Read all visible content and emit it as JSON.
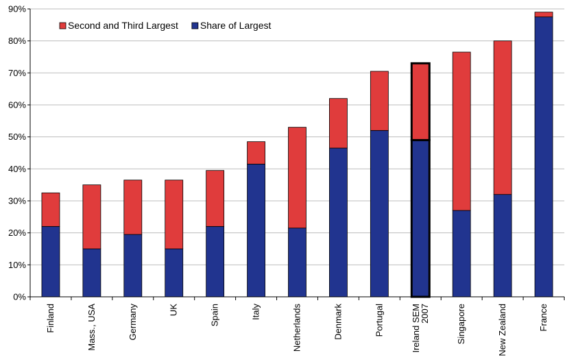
{
  "chart_data": {
    "type": "bar",
    "stacked": true,
    "categories": [
      "Finland",
      "Mass., USA",
      "Germany",
      "UK",
      "Spain",
      "Italy",
      "Netherlands",
      "Denmark",
      "Portugal",
      "Ireland SEM 2007",
      "Singapore",
      "New Zealand",
      "France"
    ],
    "highlighted_category": "Ireland SEM 2007",
    "series": [
      {
        "name": "Share of Largest",
        "color": "#21348f",
        "values": [
          22,
          15,
          19.5,
          15,
          22,
          41.5,
          21.5,
          46.5,
          52,
          49,
          27,
          32,
          87.5
        ]
      },
      {
        "name": "Second and Third Largest",
        "color": "#e03c3c",
        "values": [
          10.5,
          20,
          17,
          21.5,
          17.5,
          7,
          31.5,
          15.5,
          18.5,
          24,
          49.5,
          48,
          1.5
        ]
      }
    ],
    "legend_order": [
      "Second and Third Largest",
      "Share of Largest"
    ],
    "legend_position": "top-left",
    "ylim": [
      0,
      90
    ],
    "yticks": [
      "0%",
      "10%",
      "20%",
      "30%",
      "40%",
      "50%",
      "60%",
      "70%",
      "80%",
      "90%"
    ],
    "title": "",
    "xlabel": "",
    "ylabel": ""
  }
}
